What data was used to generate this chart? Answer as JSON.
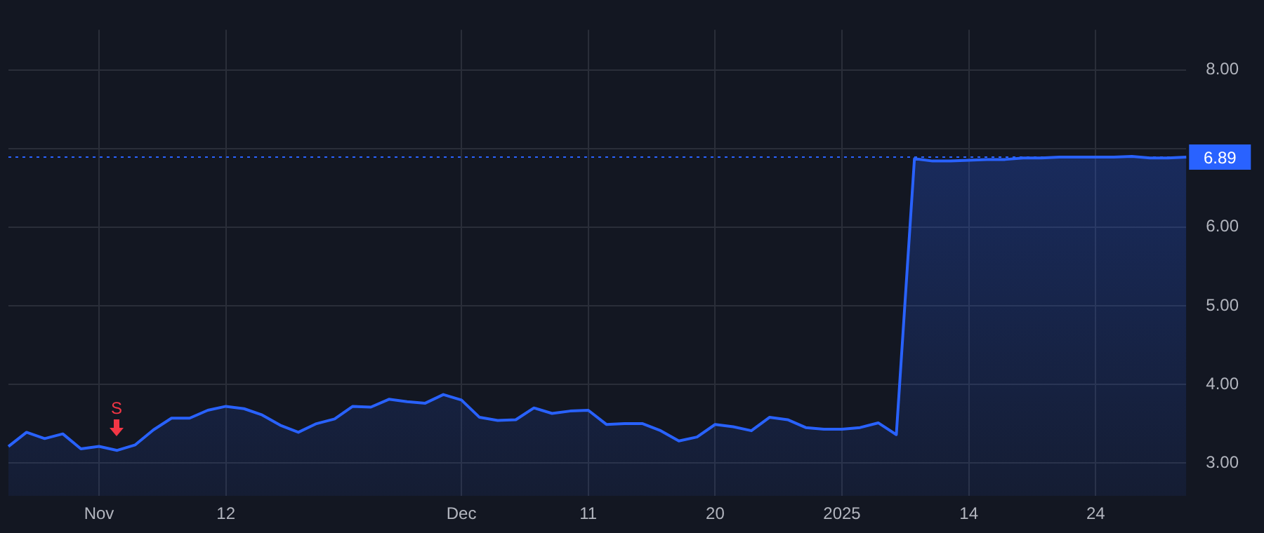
{
  "chart_data": {
    "type": "area",
    "categories": [
      null,
      null,
      null,
      null,
      null,
      "Nov",
      null,
      null,
      null,
      null,
      null,
      null,
      "12",
      null,
      null,
      null,
      null,
      null,
      null,
      null,
      null,
      null,
      null,
      null,
      null,
      "Dec",
      null,
      null,
      null,
      null,
      null,
      null,
      "11",
      null,
      null,
      null,
      null,
      null,
      null,
      "20",
      null,
      null,
      null,
      null,
      null,
      null,
      "2025",
      null,
      null,
      null,
      null,
      null,
      null,
      "14",
      null,
      null,
      null,
      null,
      null,
      null,
      "24",
      null,
      null,
      null,
      null,
      null
    ],
    "series": [
      {
        "color": "#2962ff",
        "values": [
          3.21,
          3.39,
          3.31,
          3.37,
          3.18,
          3.21,
          3.16,
          3.23,
          3.42,
          3.57,
          3.57,
          3.67,
          3.72,
          3.69,
          3.61,
          3.48,
          3.39,
          3.5,
          3.56,
          3.72,
          3.71,
          3.81,
          3.78,
          3.76,
          3.87,
          3.8,
          3.58,
          3.54,
          3.55,
          3.7,
          3.63,
          3.66,
          3.67,
          3.49,
          3.5,
          3.5,
          3.41,
          3.28,
          3.33,
          3.49,
          3.46,
          3.41,
          3.58,
          3.55,
          3.45,
          3.43,
          3.43,
          3.45,
          3.51,
          3.36,
          6.87,
          6.84,
          6.84,
          6.85,
          6.86,
          6.86,
          6.88,
          6.88,
          6.89,
          6.89,
          6.89,
          6.89,
          6.9,
          6.88,
          6.88,
          6.89
        ]
      }
    ],
    "ylim": [
      2.58,
      8.51
    ],
    "yticks": [
      {
        "value": 3,
        "label": "3.00"
      },
      {
        "value": 4,
        "label": "4.00"
      },
      {
        "value": 5,
        "label": "5.00"
      },
      {
        "value": 6,
        "label": "6.00"
      },
      {
        "value": 7,
        "label": null
      },
      {
        "value": 8,
        "label": "8.00"
      }
    ],
    "ref_lines": [
      {
        "axis": "y",
        "value": 6.89,
        "label": "6.89",
        "color": "#2962ff",
        "line_style": "dotted"
      }
    ],
    "annotations": [
      "S"
    ],
    "grid": true,
    "legend": false
  }
}
